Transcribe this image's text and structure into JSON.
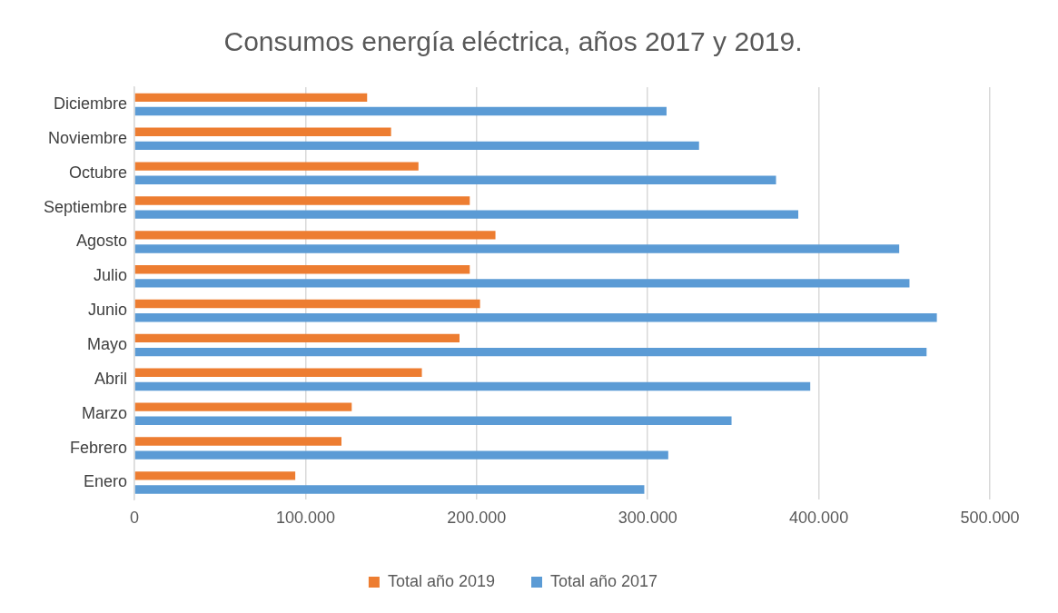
{
  "chart_data": {
    "type": "bar",
    "orientation": "horizontal",
    "title": "Consumos energía eléctrica, años 2017 y 2019.",
    "categories": [
      "Diciembre",
      "Noviembre",
      "Octubre",
      "Septiembre",
      "Agosto",
      "Julio",
      "Junio",
      "Mayo",
      "Abril",
      "Marzo",
      "Febrero",
      "Enero"
    ],
    "series": [
      {
        "name": "Total año 2019",
        "color": "#ed7d31",
        "values": [
          136000,
          150000,
          166000,
          196000,
          211000,
          196000,
          202000,
          190000,
          168000,
          127000,
          121000,
          94000
        ]
      },
      {
        "name": "Total año 2017",
        "color": "#5b9bd5",
        "values": [
          311000,
          330000,
          375000,
          388000,
          447000,
          453000,
          469000,
          463000,
          395000,
          349000,
          312000,
          298000
        ]
      }
    ],
    "xlim": [
      0,
      500000
    ],
    "xticks": [
      0,
      {
        "value": 100000,
        "label": "100.000"
      },
      {
        "value": 200000,
        "label": "200.000"
      },
      {
        "value": 300000,
        "label": "300.000"
      },
      {
        "value": 400000,
        "label": "400.000"
      },
      {
        "value": 500000,
        "label": "500.000"
      }
    ],
    "grid": "x",
    "legend": "bottom"
  }
}
